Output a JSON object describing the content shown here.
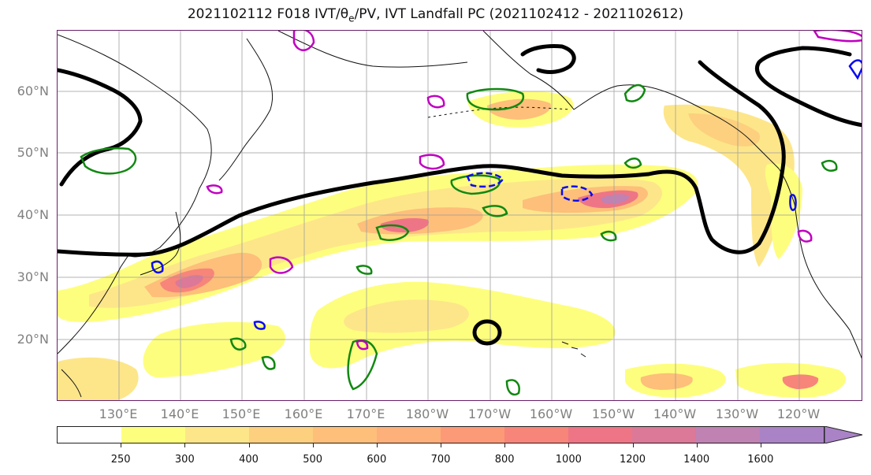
{
  "title": {
    "prefix": "2021102112 F018 IVT/",
    "theta": "θ",
    "theta_sub": "e",
    "suffix": "/PV, IVT Landfall PC (2021102412 - 2021102612)"
  },
  "lat_labels": [
    "60°N",
    "50°N",
    "40°N",
    "30°N",
    "20°N"
  ],
  "lon_labels": [
    "130°E",
    "140°E",
    "150°E",
    "160°E",
    "170°E",
    "180°W",
    "170°W",
    "160°W",
    "150°W",
    "140°W",
    "130°W",
    "120°W"
  ],
  "colorbar": {
    "ticks": [
      "250",
      "300",
      "400",
      "500",
      "600",
      "700",
      "800",
      "1000",
      "1200",
      "1400",
      "1600"
    ],
    "colors": [
      "#ffffff",
      "#fefe7e",
      "#fde68a",
      "#fcd07e",
      "#fdbf7a",
      "#fdb07a",
      "#fc9a78",
      "#f7857a",
      "#ee7586",
      "#dc7898",
      "#bf82b2",
      "#a983c6"
    ],
    "extend_color": "#a983c6"
  },
  "contour_colors": {
    "theta_e": "#000000",
    "pv_green": "#118811",
    "pv_magenta": "#c000c0",
    "pv_blue": "#0a0af0"
  }
}
